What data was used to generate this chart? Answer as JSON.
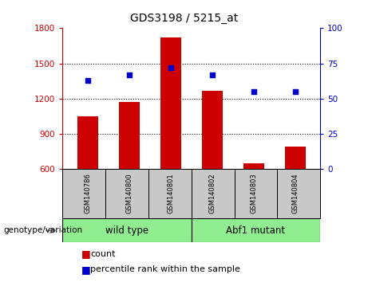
{
  "title": "GDS3198 / 5215_at",
  "samples": [
    "GSM140786",
    "GSM140800",
    "GSM140801",
    "GSM140802",
    "GSM140803",
    "GSM140804"
  ],
  "counts": [
    1050,
    1170,
    1720,
    1270,
    650,
    790
  ],
  "percentiles": [
    63,
    67,
    72,
    67,
    55,
    55
  ],
  "bar_color": "#cc0000",
  "dot_color": "#0000cc",
  "ylim_left": [
    600,
    1800
  ],
  "ylim_right": [
    0,
    100
  ],
  "yticks_left": [
    600,
    900,
    1200,
    1500,
    1800
  ],
  "yticks_right": [
    0,
    25,
    50,
    75,
    100
  ],
  "group_label": "genotype/variation",
  "legend_count": "count",
  "legend_percentile": "percentile rank within the sample",
  "tick_label_area_color": "#c8c8c8",
  "group_area_color": "#90ee90",
  "fig_width": 4.61,
  "fig_height": 3.54,
  "dpi": 100,
  "grid_yticks": [
    900,
    1200,
    1500
  ]
}
